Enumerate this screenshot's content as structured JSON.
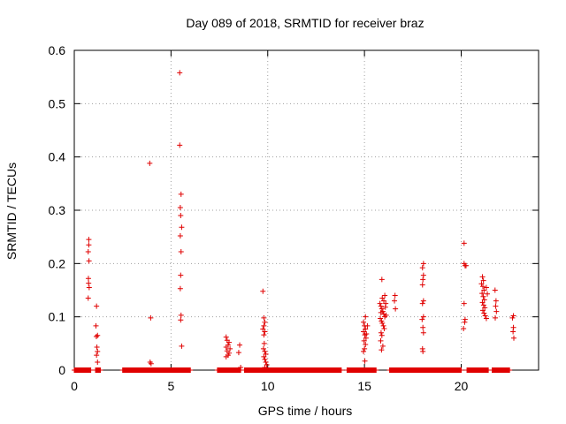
{
  "chart_data": {
    "type": "scatter",
    "title": "Day 089 of 2018, SRMTID for receiver braz",
    "xlabel": "GPS time / hours",
    "ylabel": "SRMTID / TECUs",
    "xlim": [
      0,
      24
    ],
    "ylim": [
      0,
      0.6
    ],
    "xticks": [
      0,
      5,
      10,
      15,
      20
    ],
    "yticks": [
      0,
      0.1,
      0.2,
      0.3,
      0.4,
      0.5,
      0.6
    ],
    "grid": true,
    "marker": "+",
    "color": "#e00000",
    "baseline_segments": [
      {
        "start": 0.0,
        "end": 0.85,
        "y": 0
      },
      {
        "start": 1.1,
        "end": 1.35,
        "y": 0
      },
      {
        "start": 2.5,
        "end": 6.0,
        "y": 0
      },
      {
        "start": 7.4,
        "end": 8.6,
        "y": 0
      },
      {
        "start": 8.8,
        "end": 13.8,
        "y": 0
      },
      {
        "start": 14.1,
        "end": 15.6,
        "y": 0
      },
      {
        "start": 16.3,
        "end": 20.0,
        "y": 0
      },
      {
        "start": 20.3,
        "end": 21.4,
        "y": 0
      },
      {
        "start": 21.6,
        "end": 22.5,
        "y": 0
      }
    ],
    "series": [
      {
        "name": "SRMTID",
        "points": [
          [
            0.75,
            0.245
          ],
          [
            0.75,
            0.235
          ],
          [
            0.72,
            0.222
          ],
          [
            0.76,
            0.205
          ],
          [
            0.73,
            0.172
          ],
          [
            0.74,
            0.163
          ],
          [
            0.77,
            0.155
          ],
          [
            0.72,
            0.135
          ],
          [
            1.15,
            0.12
          ],
          [
            1.12,
            0.083
          ],
          [
            1.2,
            0.065
          ],
          [
            1.14,
            0.063
          ],
          [
            1.17,
            0.043
          ],
          [
            1.2,
            0.035
          ],
          [
            1.15,
            0.028
          ],
          [
            1.2,
            0.015
          ],
          [
            3.9,
            0.388
          ],
          [
            3.95,
            0.098
          ],
          [
            3.92,
            0.015
          ],
          [
            3.97,
            0.012
          ],
          [
            5.45,
            0.558
          ],
          [
            5.45,
            0.422
          ],
          [
            5.52,
            0.33
          ],
          [
            5.48,
            0.305
          ],
          [
            5.5,
            0.29
          ],
          [
            5.55,
            0.268
          ],
          [
            5.48,
            0.252
          ],
          [
            5.52,
            0.222
          ],
          [
            5.5,
            0.178
          ],
          [
            5.48,
            0.153
          ],
          [
            5.52,
            0.103
          ],
          [
            5.5,
            0.094
          ],
          [
            5.55,
            0.045
          ],
          [
            7.85,
            0.062
          ],
          [
            7.9,
            0.056
          ],
          [
            8.0,
            0.052
          ],
          [
            7.95,
            0.047
          ],
          [
            7.85,
            0.043
          ],
          [
            8.05,
            0.04
          ],
          [
            7.9,
            0.036
          ],
          [
            8.0,
            0.032
          ],
          [
            7.95,
            0.028
          ],
          [
            7.85,
            0.025
          ],
          [
            8.55,
            0.047
          ],
          [
            8.5,
            0.033
          ],
          [
            8.6,
            0.005
          ],
          [
            9.75,
            0.148
          ],
          [
            9.8,
            0.098
          ],
          [
            9.85,
            0.09
          ],
          [
            9.8,
            0.083
          ],
          [
            9.75,
            0.077
          ],
          [
            9.85,
            0.072
          ],
          [
            9.8,
            0.066
          ],
          [
            9.82,
            0.05
          ],
          [
            9.78,
            0.04
          ],
          [
            9.85,
            0.035
          ],
          [
            9.9,
            0.03
          ],
          [
            9.8,
            0.025
          ],
          [
            9.85,
            0.02
          ],
          [
            9.9,
            0.015
          ],
          [
            9.95,
            0.01
          ],
          [
            9.85,
            0.005
          ],
          [
            15.05,
            0.1
          ],
          [
            14.95,
            0.09
          ],
          [
            15.0,
            0.083
          ],
          [
            15.05,
            0.077
          ],
          [
            14.95,
            0.072
          ],
          [
            15.02,
            0.066
          ],
          [
            15.08,
            0.06
          ],
          [
            14.98,
            0.055
          ],
          [
            15.05,
            0.048
          ],
          [
            15.0,
            0.04
          ],
          [
            14.95,
            0.035
          ],
          [
            15.02,
            0.017
          ],
          [
            15.15,
            0.083
          ],
          [
            15.1,
            0.068
          ],
          [
            15.8,
            0.125
          ],
          [
            15.85,
            0.12
          ],
          [
            15.9,
            0.115
          ],
          [
            15.95,
            0.11
          ],
          [
            16.0,
            0.105
          ],
          [
            16.05,
            0.1
          ],
          [
            15.82,
            0.097
          ],
          [
            15.88,
            0.092
          ],
          [
            15.92,
            0.088
          ],
          [
            15.98,
            0.083
          ],
          [
            16.02,
            0.078
          ],
          [
            15.86,
            0.07
          ],
          [
            15.9,
            0.065
          ],
          [
            15.84,
            0.055
          ],
          [
            15.95,
            0.045
          ],
          [
            15.88,
            0.038
          ],
          [
            15.9,
            0.17
          ],
          [
            16.05,
            0.14
          ],
          [
            15.92,
            0.135
          ],
          [
            16.0,
            0.13
          ],
          [
            16.1,
            0.125
          ],
          [
            16.08,
            0.118
          ],
          [
            15.85,
            0.108
          ],
          [
            16.12,
            0.103
          ],
          [
            16.58,
            0.14
          ],
          [
            16.55,
            0.13
          ],
          [
            16.6,
            0.115
          ],
          [
            18.05,
            0.2
          ],
          [
            18.0,
            0.192
          ],
          [
            18.05,
            0.178
          ],
          [
            18.02,
            0.17
          ],
          [
            18.0,
            0.16
          ],
          [
            18.05,
            0.13
          ],
          [
            18.0,
            0.125
          ],
          [
            18.05,
            0.1
          ],
          [
            17.98,
            0.095
          ],
          [
            18.02,
            0.08
          ],
          [
            18.05,
            0.07
          ],
          [
            18.0,
            0.04
          ],
          [
            18.02,
            0.035
          ],
          [
            20.15,
            0.238
          ],
          [
            20.15,
            0.2
          ],
          [
            20.2,
            0.196
          ],
          [
            20.25,
            0.196
          ],
          [
            20.15,
            0.125
          ],
          [
            20.2,
            0.095
          ],
          [
            20.18,
            0.09
          ],
          [
            20.12,
            0.078
          ],
          [
            21.1,
            0.175
          ],
          [
            21.15,
            0.168
          ],
          [
            21.05,
            0.162
          ],
          [
            21.12,
            0.157
          ],
          [
            21.18,
            0.15
          ],
          [
            21.08,
            0.144
          ],
          [
            21.14,
            0.138
          ],
          [
            21.2,
            0.132
          ],
          [
            21.1,
            0.127
          ],
          [
            21.16,
            0.122
          ],
          [
            21.22,
            0.117
          ],
          [
            21.12,
            0.112
          ],
          [
            21.18,
            0.107
          ],
          [
            21.24,
            0.102
          ],
          [
            21.3,
            0.097
          ],
          [
            21.35,
            0.143
          ],
          [
            21.3,
            0.155
          ],
          [
            21.75,
            0.15
          ],
          [
            21.8,
            0.13
          ],
          [
            21.78,
            0.12
          ],
          [
            21.82,
            0.11
          ],
          [
            21.76,
            0.098
          ],
          [
            22.7,
            0.102
          ],
          [
            22.65,
            0.098
          ],
          [
            22.7,
            0.08
          ],
          [
            22.68,
            0.072
          ],
          [
            22.72,
            0.06
          ]
        ]
      }
    ]
  }
}
